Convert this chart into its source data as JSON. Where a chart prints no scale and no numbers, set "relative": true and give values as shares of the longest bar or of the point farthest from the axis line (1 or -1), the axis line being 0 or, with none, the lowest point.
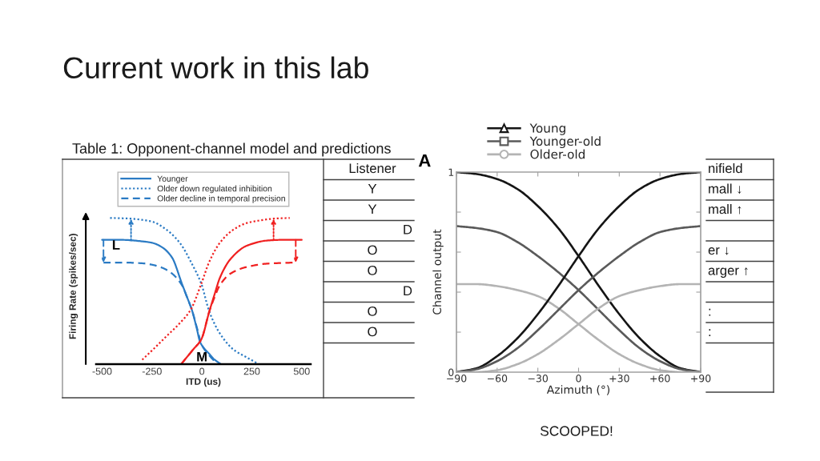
{
  "chart_data": [
    {
      "type": "other",
      "title": "Current work in this lab",
      "annotations": [
        "SCOOPED!"
      ]
    },
    {
      "type": "other",
      "title": "Table 1: Opponent-channel model and predictions",
      "annotations": [
        "Listener",
        "Y",
        "Y",
        "D",
        "O",
        "O",
        "D",
        "O",
        "O",
        "nifield",
        "mall ↓",
        "mall ↑",
        "er ↓",
        "arger ↑",
        ":",
        ":"
      ]
    },
    {
      "type": "line",
      "relative": true,
      "xlabel": "ITD (us)",
      "ylabel": "Firing Rate (spikes/sec)",
      "xlim": [
        -530,
        545
      ],
      "xticks": [
        -500,
        -250,
        0,
        250,
        500
      ],
      "legend": "top",
      "annotations": [
        {
          "text": "L",
          "x": -430,
          "y": 0.85
        },
        "M"
      ],
      "series": [
        {
          "name": "Younger",
          "color": "#2b7bc4",
          "line_style": "solid",
          "x": [
            -500,
            -400,
            -300,
            -250,
            -200,
            -150,
            -100,
            -75,
            -50,
            -25,
            -10,
            10,
            37,
            60,
            95
          ],
          "values": [
            0.85,
            0.85,
            0.84,
            0.83,
            0.8,
            0.73,
            0.55,
            0.46,
            0.37,
            0.24,
            0.155,
            0.11,
            0.07,
            0.035,
            0.0
          ]
        },
        {
          "name": "Older down regulated inhibition",
          "color": "#2b7bc4",
          "line_style": "dotted",
          "x": [
            -460,
            -355,
            -300,
            -250,
            -178,
            -111,
            -44,
            -3,
            37,
            90,
            158,
            225,
            285
          ],
          "values": [
            1.0,
            0.995,
            0.987,
            0.975,
            0.92,
            0.83,
            0.67,
            0.55,
            0.36,
            0.21,
            0.1,
            0.046,
            0.0
          ]
        },
        {
          "name": "Older decline in temporal precision",
          "color": "#2b7bc4",
          "line_style": "dashed",
          "x": [
            -493,
            -400,
            -300,
            -250,
            -200,
            -150,
            -100,
            -75,
            -50,
            -25,
            0,
            37,
            77
          ],
          "values": [
            0.695,
            0.695,
            0.69,
            0.68,
            0.66,
            0.62,
            0.54,
            0.46,
            0.37,
            0.25,
            0.13,
            0.06,
            0.0
          ]
        },
        {
          "color": "#f02020",
          "line_style": "solid",
          "x": [
            -104,
            -44,
            -3,
            37,
            64,
            90,
            144,
            225,
            332,
            400,
            500
          ],
          "values": [
            0.0,
            0.1,
            0.17,
            0.36,
            0.48,
            0.59,
            0.72,
            0.81,
            0.846,
            0.85,
            0.85
          ]
        },
        {
          "color": "#f02020",
          "line_style": "dotted",
          "x": [
            -299,
            -245,
            -178,
            -111,
            -57,
            -3,
            37,
            90,
            158,
            225,
            300,
            359,
            440
          ],
          "values": [
            0.03,
            0.1,
            0.19,
            0.28,
            0.37,
            0.55,
            0.7,
            0.83,
            0.92,
            0.965,
            0.985,
            0.995,
            1.0
          ]
        },
        {
          "color": "#f02020",
          "line_style": "dashed",
          "x": [
            -104,
            -44,
            -3,
            37,
            64,
            90,
            144,
            225,
            332,
            470
          ],
          "values": [
            0.0,
            0.1,
            0.17,
            0.36,
            0.46,
            0.54,
            0.62,
            0.665,
            0.688,
            0.695
          ]
        }
      ]
    },
    {
      "type": "line",
      "xlabel": "Azimuth (°)",
      "ylabel": "Channel output",
      "xlim": [
        -90,
        90
      ],
      "ylim": [
        0,
        1
      ],
      "xticks": [
        {
          "value": -90,
          "label": "−90"
        },
        {
          "value": -60,
          "label": "−60"
        },
        {
          "value": -30,
          "label": "−30"
        },
        0,
        {
          "value": 30,
          "label": "+30"
        },
        {
          "value": 60,
          "label": "+60"
        },
        {
          "value": 90,
          "label": "+90"
        }
      ],
      "yticks": [
        0,
        {
          "value": 0.2,
          "label": null
        },
        {
          "value": 0.4,
          "label": null
        },
        {
          "value": 0.6,
          "label": null
        },
        {
          "value": 0.8,
          "label": null
        },
        1
      ],
      "legend": "top",
      "annotations": [
        "A"
      ],
      "x": [
        -90,
        -75,
        -60,
        -45,
        -30,
        -15,
        0,
        15,
        30,
        45,
        60,
        75,
        90
      ],
      "series": [
        {
          "name": "Young",
          "color": "#151515",
          "values": [
            1.0,
            0.99,
            0.965,
            0.915,
            0.83,
            0.72,
            0.58,
            0.43,
            0.29,
            0.17,
            0.08,
            0.02,
            0.0
          ]
        },
        {
          "name": "Younger-old",
          "color": "#5a5a5a",
          "values": [
            0.73,
            0.72,
            0.7,
            0.65,
            0.58,
            0.5,
            0.41,
            0.31,
            0.21,
            0.12,
            0.055,
            0.015,
            0.0
          ]
        },
        {
          "name": "Older-old",
          "color": "#b4b4b4",
          "values": [
            0.44,
            0.44,
            0.43,
            0.41,
            0.38,
            0.32,
            0.24,
            0.16,
            0.09,
            0.04,
            0.01,
            0.0,
            0.0
          ]
        },
        {
          "color": "#151515",
          "values": [
            0.0,
            0.02,
            0.08,
            0.17,
            0.29,
            0.43,
            0.58,
            0.72,
            0.83,
            0.915,
            0.965,
            0.99,
            1.0
          ]
        },
        {
          "color": "#5a5a5a",
          "values": [
            0.0,
            0.015,
            0.055,
            0.12,
            0.21,
            0.31,
            0.41,
            0.5,
            0.58,
            0.65,
            0.7,
            0.72,
            0.73
          ]
        },
        {
          "color": "#b4b4b4",
          "values": [
            0.0,
            0.0,
            0.01,
            0.04,
            0.09,
            0.16,
            0.24,
            0.32,
            0.38,
            0.41,
            0.43,
            0.44,
            0.44
          ]
        }
      ]
    }
  ]
}
